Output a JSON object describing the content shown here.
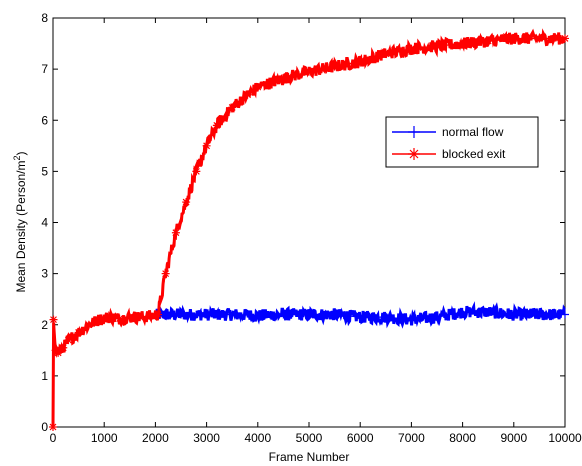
{
  "chart_data": {
    "type": "line",
    "xlabel": "Frame Number",
    "ylabel_main": "Mean Density (Person/m",
    "ylabel_sup": "2",
    "ylabel_close": ")",
    "xlim": [
      0,
      10000
    ],
    "ylim": [
      0,
      8
    ],
    "xticks": [
      0,
      1000,
      2000,
      3000,
      4000,
      5000,
      6000,
      7000,
      8000,
      9000,
      10000
    ],
    "yticks": [
      0,
      1,
      2,
      3,
      4,
      5,
      6,
      7,
      8
    ],
    "xtick_labels": [
      "0",
      "1000",
      "2000",
      "3000",
      "4000",
      "5000",
      "6000",
      "7000",
      "8000",
      "9000",
      "10000"
    ],
    "ytick_labels": [
      "0",
      "1",
      "2",
      "3",
      "4",
      "5",
      "6",
      "7",
      "8"
    ],
    "grid": false,
    "legend_position": "upper-right",
    "series": [
      {
        "name": "normal flow",
        "color": "#0000ff",
        "marker": "plus",
        "x": [
          0,
          10,
          50,
          100,
          200,
          300,
          500,
          700,
          900,
          1100,
          1300,
          1500,
          1700,
          1900,
          2100,
          2500,
          3000,
          3500,
          4000,
          4500,
          5000,
          5500,
          6000,
          6500,
          7000,
          7500,
          8000,
          8500,
          9000,
          9500,
          10000
        ],
        "y": [
          0,
          2.1,
          1.5,
          1.45,
          1.55,
          1.7,
          1.85,
          2.0,
          2.1,
          2.15,
          2.12,
          2.15,
          2.15,
          2.17,
          2.2,
          2.2,
          2.2,
          2.2,
          2.18,
          2.2,
          2.2,
          2.2,
          2.15,
          2.15,
          2.1,
          2.15,
          2.25,
          2.25,
          2.2,
          2.2,
          2.2
        ]
      },
      {
        "name": "blocked exit",
        "color": "#ff0000",
        "marker": "star",
        "x": [
          0,
          10,
          50,
          100,
          200,
          300,
          500,
          700,
          900,
          1100,
          1300,
          1500,
          1700,
          1900,
          2050,
          2200,
          2400,
          2600,
          2800,
          3000,
          3200,
          3500,
          3800,
          4000,
          4300,
          4600,
          5000,
          5500,
          6000,
          6500,
          7000,
          7500,
          8000,
          8500,
          9000,
          9500,
          10000
        ],
        "y": [
          0,
          2.1,
          1.5,
          1.45,
          1.55,
          1.7,
          1.85,
          2.0,
          2.1,
          2.15,
          2.12,
          2.15,
          2.15,
          2.17,
          2.2,
          3.0,
          3.8,
          4.4,
          5.0,
          5.5,
          5.9,
          6.25,
          6.5,
          6.65,
          6.75,
          6.85,
          6.95,
          7.05,
          7.15,
          7.3,
          7.4,
          7.45,
          7.5,
          7.55,
          7.6,
          7.6,
          7.6
        ]
      }
    ]
  }
}
